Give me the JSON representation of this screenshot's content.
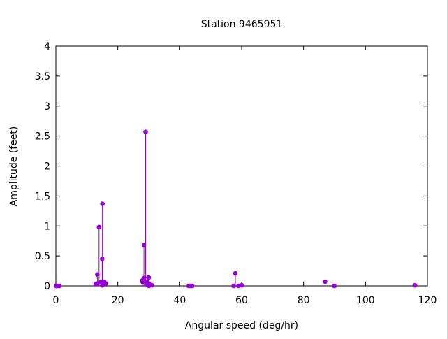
{
  "chart_data": {
    "type": "scatter",
    "style": "impulses with points",
    "title": "Station 9465951",
    "xlabel": "Angular speed (deg/hr)",
    "ylabel": "Amplitude (feet)",
    "xlim": [
      0,
      120
    ],
    "ylim": [
      0,
      4
    ],
    "xticks": [
      "0",
      "20",
      "40",
      "60",
      "80",
      "100",
      "120"
    ],
    "yticks": [
      "0",
      "0.5",
      "1",
      "1.5",
      "2",
      "2.5",
      "3",
      "3.5",
      "4"
    ],
    "grid": false,
    "color": "#9400d3",
    "x": [
      0.041,
      0.082,
      0.544,
      1.098,
      12.854,
      12.927,
      13.399,
      13.471,
      13.943,
      14.497,
      14.959,
      15.0,
      15.041,
      15.585,
      16.139,
      27.895,
      27.968,
      28.44,
      28.513,
      28.984,
      29.455,
      29.528,
      29.959,
      30.0,
      30.041,
      30.082,
      31.016,
      42.927,
      43.476,
      44.025,
      57.424,
      57.968,
      58.984,
      60.0,
      86.952,
      89.9,
      115.936
    ],
    "y": [
      0.0,
      0.0,
      0.0,
      0.0,
      0.03,
      0.03,
      0.19,
      0.04,
      0.98,
      0.07,
      0.45,
      0.01,
      1.37,
      0.07,
      0.04,
      0.09,
      0.07,
      0.68,
      0.13,
      2.57,
      0.02,
      0.06,
      0.01,
      0.14,
      0.0,
      0.04,
      0.01,
      0.0,
      0.0,
      0.0,
      0.0,
      0.21,
      0.0,
      0.01,
      0.07,
      0.0,
      0.01
    ]
  }
}
